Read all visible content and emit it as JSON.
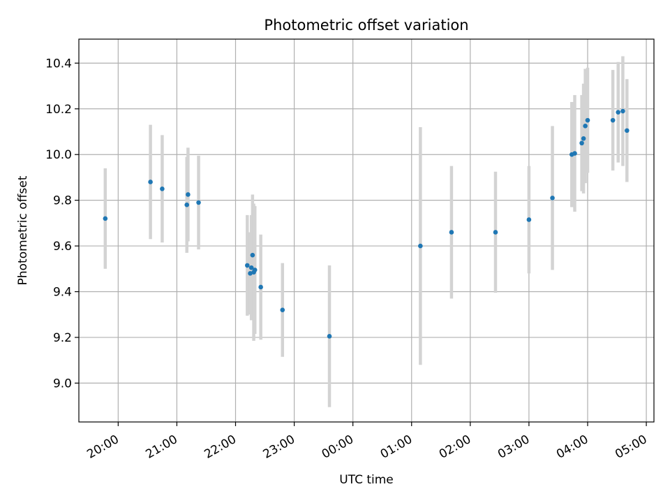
{
  "chart_data": {
    "type": "scatter",
    "title": "Photometric offset variation",
    "xlabel": "UTC time",
    "ylabel": "Photometric offset",
    "x_unit": "hours (UTC, continuing past midnight as 24+)",
    "xlim": [
      19.33,
      29.13
    ],
    "ylim": [
      8.83,
      10.505
    ],
    "x_ticks": [
      20,
      21,
      22,
      23,
      24,
      25,
      26,
      27,
      28,
      29
    ],
    "x_tick_labels": [
      "20:00",
      "21:00",
      "22:00",
      "23:00",
      "00:00",
      "01:00",
      "02:00",
      "03:00",
      "04:00",
      "05:00"
    ],
    "y_ticks": [
      9.0,
      9.2,
      9.4,
      9.6,
      9.8,
      10.0,
      10.2,
      10.4
    ],
    "y_tick_labels": [
      "9.0",
      "9.2",
      "9.4",
      "9.6",
      "9.8",
      "10.0",
      "10.2",
      "10.4"
    ],
    "grid": true,
    "point_color": "#1f77b4",
    "errorbar_color": "#d3d3d3",
    "points": [
      {
        "x": 19.78,
        "y": 9.72,
        "err": 0.22
      },
      {
        "x": 20.55,
        "y": 9.88,
        "err": 0.25
      },
      {
        "x": 20.75,
        "y": 9.85,
        "err": 0.235
      },
      {
        "x": 21.17,
        "y": 9.78,
        "err": 0.21
      },
      {
        "x": 21.19,
        "y": 9.825,
        "err": 0.205
      },
      {
        "x": 21.37,
        "y": 9.79,
        "err": 0.205
      },
      {
        "x": 22.2,
        "y": 9.515,
        "err": 0.22
      },
      {
        "x": 22.25,
        "y": 9.48,
        "err": 0.18
      },
      {
        "x": 22.27,
        "y": 9.505,
        "err": 0.23
      },
      {
        "x": 22.29,
        "y": 9.56,
        "err": 0.265
      },
      {
        "x": 22.31,
        "y": 9.485,
        "err": 0.3
      },
      {
        "x": 22.33,
        "y": 9.495,
        "err": 0.28
      },
      {
        "x": 22.43,
        "y": 9.42,
        "err": 0.23
      },
      {
        "x": 22.8,
        "y": 9.32,
        "err": 0.205
      },
      {
        "x": 23.6,
        "y": 9.205,
        "err": 0.31
      },
      {
        "x": 25.15,
        "y": 9.6,
        "err": 0.52
      },
      {
        "x": 25.68,
        "y": 9.66,
        "err": 0.29
      },
      {
        "x": 26.43,
        "y": 9.66,
        "err": 0.265
      },
      {
        "x": 27.0,
        "y": 9.715,
        "err": 0.235
      },
      {
        "x": 27.4,
        "y": 9.81,
        "err": 0.315
      },
      {
        "x": 27.73,
        "y": 10.0,
        "err": 0.23
      },
      {
        "x": 27.78,
        "y": 10.005,
        "err": 0.255
      },
      {
        "x": 27.9,
        "y": 10.05,
        "err": 0.21
      },
      {
        "x": 27.93,
        "y": 10.07,
        "err": 0.24
      },
      {
        "x": 27.96,
        "y": 10.125,
        "err": 0.25
      },
      {
        "x": 28.0,
        "y": 10.15,
        "err": 0.23
      },
      {
        "x": 28.43,
        "y": 10.15,
        "err": 0.22
      },
      {
        "x": 28.52,
        "y": 10.185,
        "err": 0.22
      },
      {
        "x": 28.6,
        "y": 10.19,
        "err": 0.24
      },
      {
        "x": 28.67,
        "y": 10.105,
        "err": 0.225
      }
    ]
  }
}
